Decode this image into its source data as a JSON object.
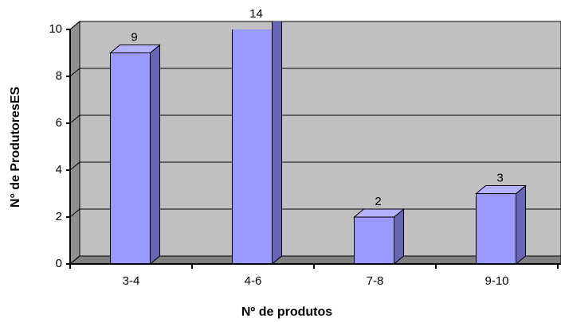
{
  "chart_data": {
    "type": "bar3d",
    "categories": [
      "3-4",
      "4-6",
      "7-8",
      "9-10"
    ],
    "values": [
      9,
      14,
      2,
      3
    ],
    "color": "#9999ff",
    "ylim": [
      0,
      10
    ],
    "yticks": [
      0,
      2,
      4,
      6,
      8,
      10
    ],
    "grid": true,
    "xlabel": "Nº de produtos",
    "ylabel": "N° de ProdutoresES"
  }
}
